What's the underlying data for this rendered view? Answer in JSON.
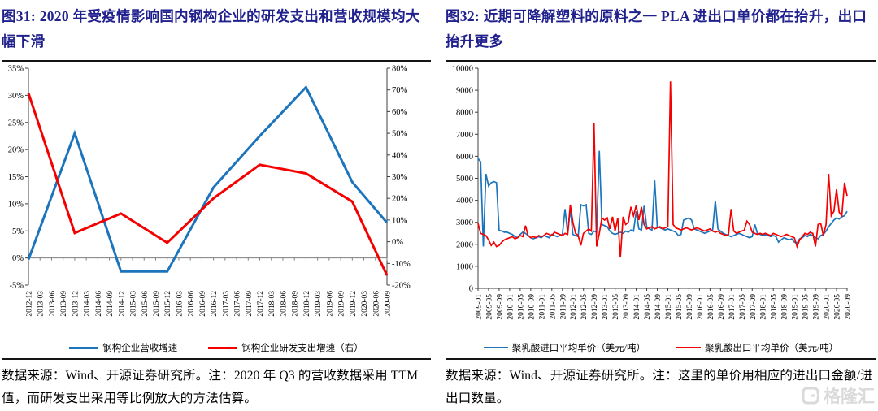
{
  "panels": {
    "left": {
      "title": "图31: 2020 年受疫情影响国内钢构企业的研发支出和营收规模均大幅下滑",
      "footnote": "数据来源：Wind、开源证券研究所。注：2020 年 Q3 的营收数据采用 TTM 值，而研发支出采用等比例放大的方法估算。"
    },
    "right": {
      "title": "图32: 近期可降解塑料的原料之一 PLA 进出口单价都在抬升，出口抬升更多",
      "footnote": "数据来源：Wind、开源证券研究所。注：这里的单价用相应的进出口金额/进出口数量。"
    }
  },
  "watermark": {
    "text": "格隆汇"
  },
  "colors": {
    "line_blue": "#1C75BC",
    "line_red": "#F40000",
    "title_navy": "#21218E",
    "axis_gray": "#7f7f7f",
    "watermark_gray": "#DADADA"
  },
  "chart_data": [
    {
      "type": "line",
      "figure": "图31",
      "categories": [
        "2012-12",
        "2013-03",
        "2013-06",
        "2013-09",
        "2013-12",
        "2014-03",
        "2014-06",
        "2014-09",
        "2014-12",
        "2015-03",
        "2015-06",
        "2015-09",
        "2015-12",
        "2016-03",
        "2016-06",
        "2016-09",
        "2016-12",
        "2017-03",
        "2017-06",
        "2017-09",
        "2017-12",
        "2018-03",
        "2018-06",
        "2018-09",
        "2018-12",
        "2019-03",
        "2019-06",
        "2019-09",
        "2019-12",
        "2020-03",
        "2020-06",
        "2020-09"
      ],
      "left_axis": {
        "min": -5,
        "max": 35,
        "step": 5,
        "suffix": "%"
      },
      "right_axis": {
        "min": -20,
        "max": 80,
        "step": 10,
        "suffix": "%"
      },
      "grid": false,
      "legend_position": "bottom",
      "series": [
        {
          "name": "钢构企业营收增速",
          "axis": "left",
          "color": "#1C75BC",
          "points": [
            [
              "2012-12",
              -0.3
            ],
            [
              "2013-12",
              23
            ],
            [
              "2014-12",
              -2.5
            ],
            [
              "2015-12",
              -2.5
            ],
            [
              "2016-12",
              13
            ],
            [
              "2017-12",
              22.5
            ],
            [
              "2018-12",
              31.5
            ],
            [
              "2019-12",
              14
            ],
            [
              "2020-09",
              6.5
            ]
          ]
        },
        {
          "name": "钢构企业研发支出增速（右）",
          "axis": "right",
          "color": "#F40000",
          "points": [
            [
              "2012-12",
              68.5
            ],
            [
              "2013-12",
              4
            ],
            [
              "2014-12",
              13
            ],
            [
              "2015-12",
              -0.5
            ],
            [
              "2016-12",
              20
            ],
            [
              "2017-12",
              35.5
            ],
            [
              "2018-12",
              31.5
            ],
            [
              "2019-12",
              18.5
            ],
            [
              "2020-09",
              -15.5
            ]
          ]
        }
      ]
    },
    {
      "type": "line",
      "figure": "图32",
      "x_start": "2009-01",
      "x_end": "2020-09",
      "frequency": "monthly",
      "n_points": 141,
      "y_axis": {
        "min": 0,
        "max": 10000,
        "step": 1000
      },
      "x_tick_labels": [
        "2009-01",
        "2009-05",
        "2009-09",
        "2010-01",
        "2010-05",
        "2010-09",
        "2011-01",
        "2011-05",
        "2011-09",
        "2012-01",
        "2012-05",
        "2012-09",
        "2013-01",
        "2013-05",
        "2013-09",
        "2014-01",
        "2014-05",
        "2014-09",
        "2015-01",
        "2015-05",
        "2015-09",
        "2016-01",
        "2016-05",
        "2016-09",
        "2017-01",
        "2017-05",
        "2017-09",
        "2018-01",
        "2018-05",
        "2018-09",
        "2019-01",
        "2019-05",
        "2019-09",
        "2020-01",
        "2020-05",
        "2020-09"
      ],
      "grid": false,
      "legend_position": "bottom",
      "series": [
        {
          "name": "聚乳酸进口平均单价（美元/吨）",
          "color": "#1C75BC",
          "values": [
            5900,
            5750,
            1900,
            5200,
            4650,
            4800,
            4850,
            4800,
            2650,
            2600,
            2550,
            2550,
            2500,
            2450,
            2350,
            2300,
            2450,
            2550,
            2500,
            2400,
            2300,
            2250,
            2300,
            2350,
            2300,
            2400,
            2350,
            2300,
            2450,
            2400,
            2350,
            2400,
            2450,
            3600,
            2500,
            3600,
            2450,
            2400,
            2350,
            3800,
            3750,
            3800,
            2500,
            2450,
            2600,
            2550,
            6250,
            2900,
            2850,
            2800,
            2600,
            2500,
            2450,
            2500,
            2550,
            2500,
            2600,
            2550,
            2650,
            2600,
            3500,
            2700,
            2650,
            3750,
            2800,
            2700,
            2650,
            4900,
            2800,
            2750,
            2700,
            2650,
            2700,
            2650,
            2600,
            2550,
            2400,
            2450,
            3100,
            3150,
            3200,
            3100,
            2700,
            2650,
            2600,
            2550,
            2500,
            2550,
            2600,
            2650,
            3980,
            2700,
            2600,
            2500,
            2450,
            2400,
            2350,
            2400,
            2450,
            2500,
            2450,
            2400,
            2350,
            2300,
            2350,
            2900,
            2500,
            2450,
            2400,
            2450,
            2400,
            2350,
            2400,
            2350,
            2100,
            2200,
            2300,
            2250,
            2200,
            2250,
            2100,
            2050,
            2250,
            2300,
            2400,
            2350,
            2450,
            2400,
            2300,
            2250,
            2400,
            2450,
            2600,
            2800,
            2950,
            3100,
            3200,
            3150,
            3250,
            3300,
            3500
          ]
        },
        {
          "name": "聚乳酸出口平均单价（美元/吨）",
          "color": "#F40000",
          "values": [
            2950,
            2500,
            2450,
            2400,
            2200,
            1950,
            2100,
            1900,
            1950,
            2100,
            2200,
            2250,
            2300,
            2350,
            2250,
            2300,
            2400,
            2350,
            2850,
            2400,
            2300,
            2350,
            2300,
            2400,
            2350,
            2400,
            2500,
            2450,
            2400,
            2550,
            2500,
            2450,
            2400,
            2500,
            2450,
            3800,
            3000,
            2500,
            2400,
            1950,
            2500,
            2600,
            2700,
            2600,
            7500,
            1900,
            2500,
            3200,
            3100,
            3200,
            2700,
            3250,
            2600,
            3200,
            1400,
            3250,
            2900,
            3000,
            3700,
            3300,
            3780,
            3100,
            3700,
            2900,
            2700,
            2750,
            2800,
            2700,
            2750,
            2800,
            2700,
            2750,
            2800,
            9400,
            2900,
            2750,
            2700,
            2650,
            2700,
            2750,
            2700,
            2650,
            2700,
            2750,
            2700,
            2650,
            2600,
            2650,
            2700,
            2600,
            2550,
            2600,
            2500,
            2450,
            2400,
            2450,
            3600,
            2600,
            2500,
            2550,
            2600,
            2650,
            3050,
            2900,
            2550,
            2500,
            2450,
            2500,
            2450,
            2500,
            2450,
            2400,
            2500,
            2450,
            2400,
            2350,
            2400,
            2450,
            2400,
            2350,
            2300,
            1900,
            2200,
            2350,
            2500,
            2450,
            2550,
            2500,
            1900,
            2900,
            2950,
            2400,
            2900,
            5200,
            3300,
            3500,
            4500,
            3450,
            3300,
            4800,
            4200
          ]
        }
      ]
    }
  ]
}
